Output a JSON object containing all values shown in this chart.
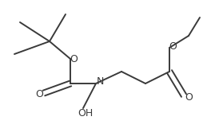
{
  "bg_color": "#ffffff",
  "line_color": "#3a3a3a",
  "line_width": 1.4,
  "font_size": 8.5,
  "figsize": [
    2.54,
    1.71
  ],
  "dpi": 100,
  "xlim": [
    0,
    254
  ],
  "ylim": [
    0,
    171
  ]
}
